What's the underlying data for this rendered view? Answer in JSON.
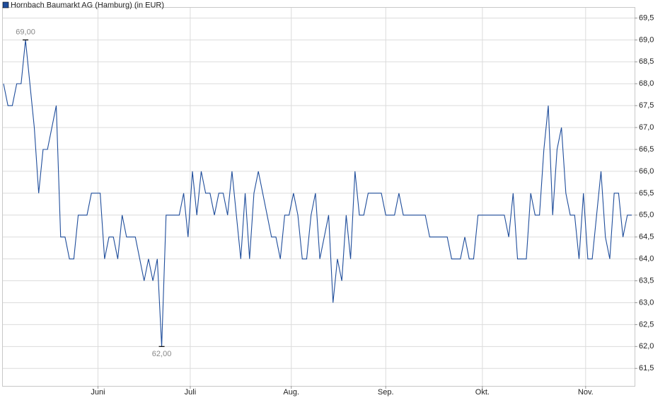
{
  "chart_data": {
    "type": "line",
    "series": [
      {
        "name": "Hornbach Baumarkt AG (Hamburg) (in EUR)",
        "color": "#1f4d9b",
        "values": [
          68.0,
          67.5,
          67.5,
          68.0,
          68.0,
          69.0,
          68.0,
          67.0,
          65.5,
          66.5,
          66.5,
          67.0,
          67.5,
          64.5,
          64.5,
          64.0,
          64.0,
          65.0,
          65.0,
          65.0,
          65.5,
          65.5,
          65.5,
          64.0,
          64.5,
          64.5,
          64.0,
          65.0,
          64.5,
          64.5,
          64.5,
          64.0,
          63.5,
          64.0,
          63.5,
          64.0,
          62.0,
          65.0,
          65.0,
          65.0,
          65.0,
          65.5,
          64.5,
          66.0,
          65.0,
          66.0,
          65.5,
          65.5,
          65.0,
          65.5,
          65.5,
          65.0,
          66.0,
          65.0,
          64.0,
          65.5,
          64.0,
          65.5,
          66.0,
          65.5,
          65.0,
          64.5,
          64.5,
          64.0,
          65.0,
          65.0,
          65.5,
          65.0,
          64.0,
          64.0,
          65.0,
          65.5,
          64.0,
          64.5,
          65.0,
          63.0,
          64.0,
          63.5,
          65.0,
          64.0,
          66.0,
          65.0,
          65.0,
          65.5,
          65.5,
          65.5,
          65.5,
          65.0,
          65.0,
          65.0,
          65.5,
          65.0,
          65.0,
          65.0,
          65.0,
          65.0,
          65.0,
          64.5,
          64.5,
          64.5,
          64.5,
          64.5,
          64.0,
          64.0,
          64.0,
          64.5,
          64.0,
          64.0,
          65.0,
          65.0,
          65.0,
          65.0,
          65.0,
          65.0,
          65.0,
          64.5,
          65.5,
          64.0,
          64.0,
          64.0,
          65.5,
          65.0,
          65.0,
          66.5,
          67.5,
          65.0,
          66.5,
          67.0,
          65.5,
          65.0,
          65.0,
          64.0,
          65.5,
          64.0,
          64.0,
          65.0,
          66.0,
          64.5,
          64.0,
          65.5,
          65.5,
          64.5,
          65.0,
          65.0
        ]
      }
    ],
    "xlim": [
      0,
      143
    ],
    "xticks": [
      {
        "value": 21.5,
        "label": "Juni"
      },
      {
        "value": 42.5,
        "label": "Juli"
      },
      {
        "value": 65.5,
        "label": "Aug."
      },
      {
        "value": 87,
        "label": "Sep."
      },
      {
        "value": 109,
        "label": "Okt."
      },
      {
        "value": 132.5,
        "label": "Nov."
      }
    ],
    "ylim": [
      61.1,
      69.75
    ],
    "yticks": [
      {
        "value": 61.5,
        "label": "61,5"
      },
      {
        "value": 62,
        "label": "62,0"
      },
      {
        "value": 62.5,
        "label": "62,5"
      },
      {
        "value": 63,
        "label": "63,0"
      },
      {
        "value": 63.5,
        "label": "63,5"
      },
      {
        "value": 64,
        "label": "64,0"
      },
      {
        "value": 64.5,
        "label": "64,5"
      },
      {
        "value": 65,
        "label": "65,0"
      },
      {
        "value": 65.5,
        "label": "65,5"
      },
      {
        "value": 66,
        "label": "66,0"
      },
      {
        "value": 66.5,
        "label": "66,5"
      },
      {
        "value": 67,
        "label": "67,0"
      },
      {
        "value": 67.5,
        "label": "67,5"
      },
      {
        "value": 68,
        "label": "68,0"
      },
      {
        "value": 68.5,
        "label": "68,5"
      },
      {
        "value": 69,
        "label": "69,0"
      },
      {
        "value": 69.5,
        "label": "69,5"
      }
    ],
    "grid": true,
    "annotations": [
      {
        "x": 5,
        "y": 69,
        "text": "69,00",
        "position": "above"
      },
      {
        "x": 36,
        "y": 62,
        "text": "62,00",
        "position": "below"
      }
    ]
  }
}
